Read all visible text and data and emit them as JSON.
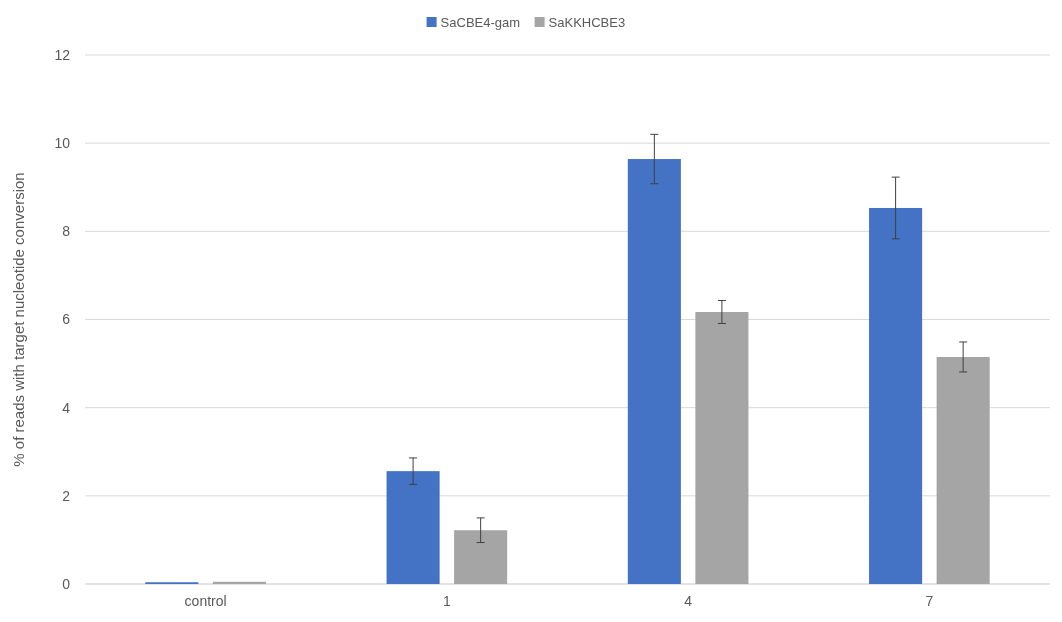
{
  "chart_data": {
    "type": "bar",
    "ylabel": "% of reads with target nucleotide conversion",
    "categories": [
      "control",
      "1",
      "4",
      "7"
    ],
    "series": [
      {
        "name": "SaCBE4-gam",
        "color": "#4472c4",
        "values": [
          0.04,
          2.56,
          9.64,
          8.53
        ],
        "errors": [
          null,
          0.3,
          0.56,
          0.7
        ]
      },
      {
        "name": "SaKKHCBE3",
        "color": "#a5a5a5",
        "values": [
          0.05,
          1.22,
          6.17,
          5.15
        ],
        "errors": [
          null,
          0.28,
          0.26,
          0.34
        ]
      }
    ],
    "ylim": [
      0,
      12
    ],
    "yticks": [
      0,
      2,
      4,
      6,
      8,
      10,
      12
    ],
    "grid": "y",
    "legend": "top"
  }
}
